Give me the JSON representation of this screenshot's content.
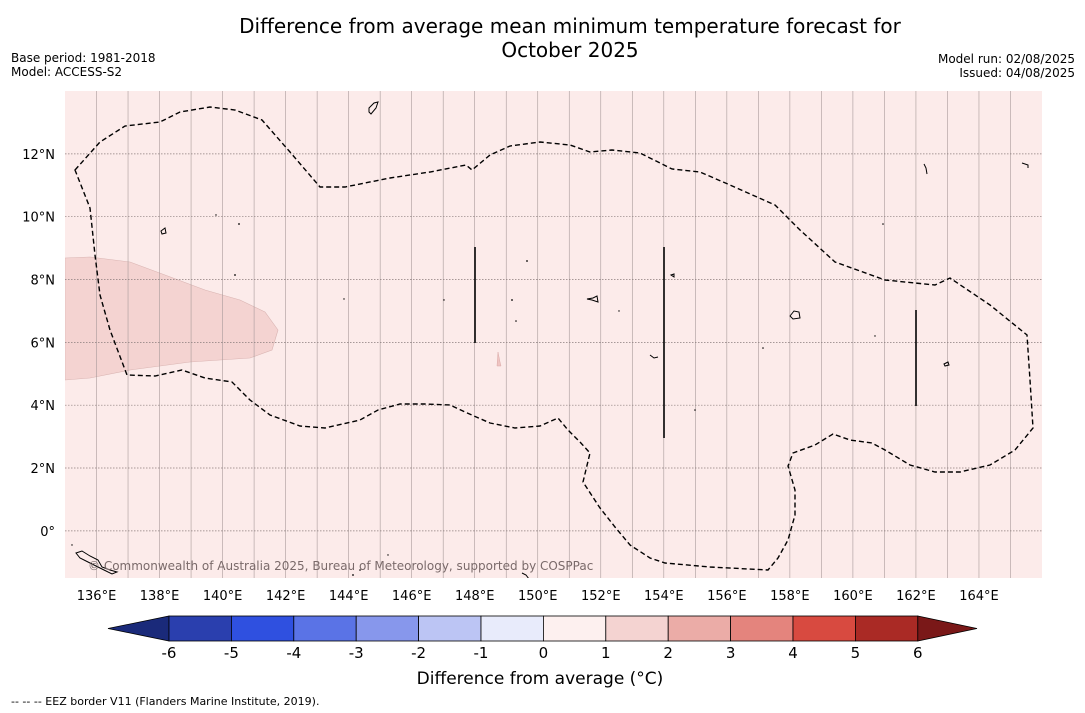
{
  "title_line1": "Difference from average mean minimum temperature forecast for",
  "title_line2": "October 2025",
  "base_period": "Base period: 1981-2018",
  "model": "Model: ACCESS-S2",
  "model_run": "Model run: 02/08/2025",
  "issued": "Issued: 04/08/2025",
  "copyright": "© Commonwealth of Australia 2025, Bureau of Meteorology, supported by COSPPac",
  "footnote": "--  --  -- EEZ border V11 (Flanders Marine Institute, 2019).",
  "colorbar": {
    "label": "Difference from average (°C)",
    "ticks": [
      "-6",
      "-5",
      "-4",
      "-3",
      "-2",
      "-1",
      "0",
      "1",
      "2",
      "3",
      "4",
      "5",
      "6"
    ],
    "colors": [
      "#1a2a7a",
      "#2a3fae",
      "#2f50e0",
      "#5a73e6",
      "#8797ec",
      "#bcc5f4",
      "#e8ebfb",
      "#fdf0ef",
      "#f4d3d1",
      "#ebaca7",
      "#e4847d",
      "#d84a40",
      "#aa2a25",
      "#7a1818"
    ]
  },
  "map": {
    "lon_labels": [
      "136°E",
      "138°E",
      "140°E",
      "142°E",
      "144°E",
      "146°E",
      "148°E",
      "150°E",
      "152°E",
      "154°E",
      "156°E",
      "158°E",
      "160°E",
      "162°E",
      "164°E"
    ],
    "lat_labels": [
      "12°N",
      "10°N",
      "8°N",
      "6°N",
      "4°N",
      "2°N",
      "0°"
    ],
    "lon_range": [
      135,
      166
    ],
    "lat_range": [
      -1.5,
      14
    ],
    "background_category": "0 to 1",
    "background_color": "#fcebea",
    "anomaly_patch_category": "1 to 2",
    "anomaly_patch_color": "#f4d3d1"
  }
}
